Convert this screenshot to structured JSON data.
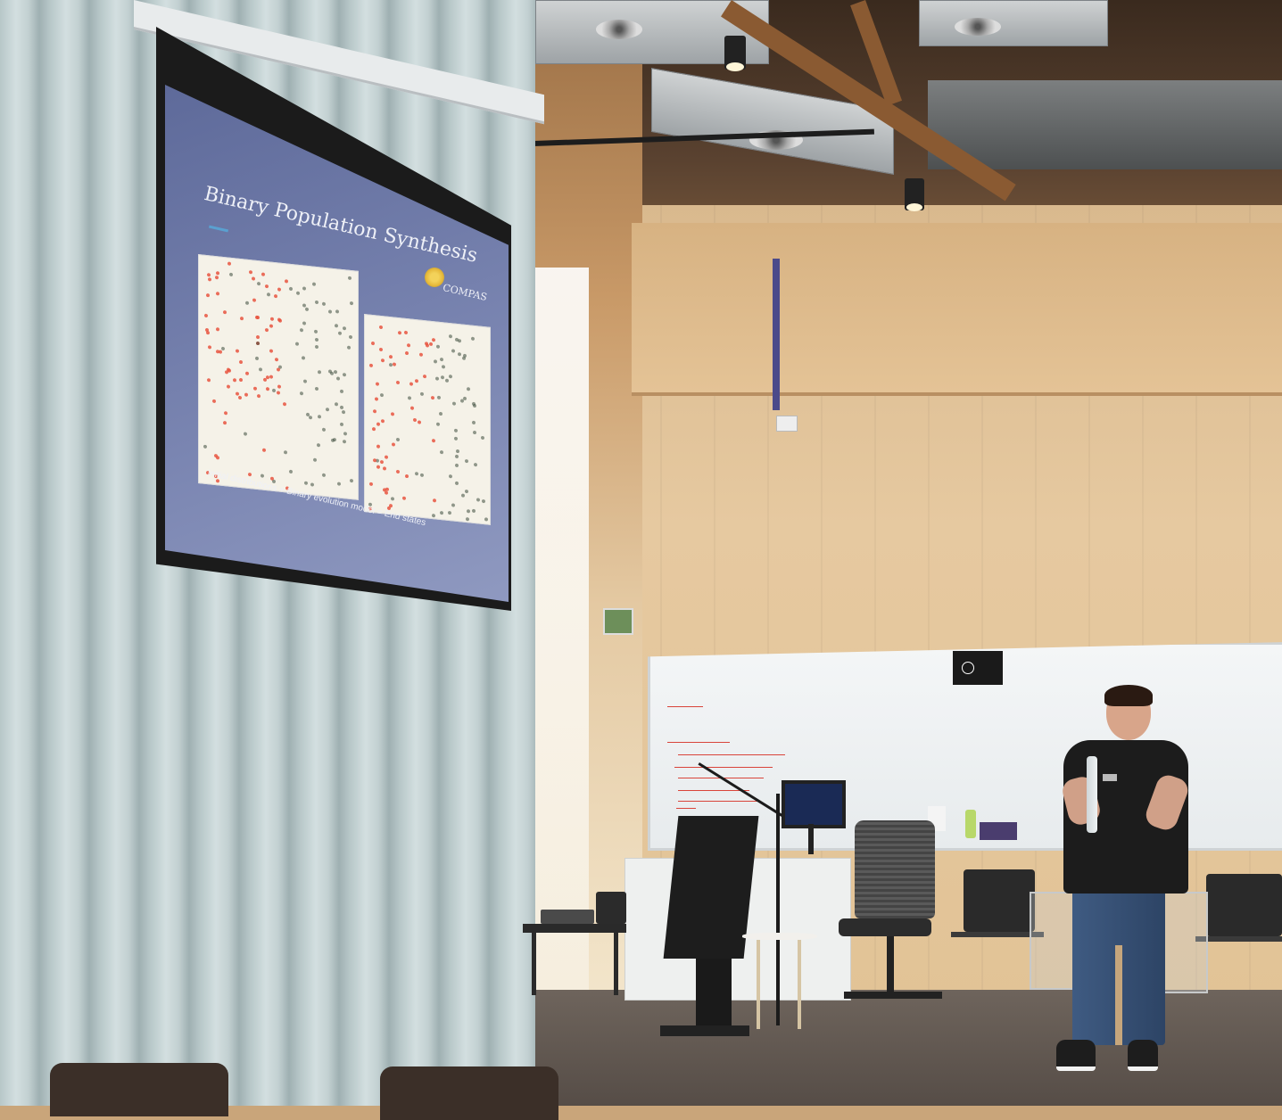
{
  "scene": {
    "description_type": "photo",
    "subject": "presenter-in-lecture-room"
  },
  "slide": {
    "title": "Binary Population Synthesis",
    "logo_text": "COMPAS",
    "caption": "Initial distributions + Binary evolution model = End states"
  },
  "colors": {
    "slide_bg": "#6f7aa8",
    "wood": "#e2c396",
    "curtain": "#b7c7c8",
    "plot_red": "#e8553f",
    "plot_dark": "#3a4a3a"
  }
}
